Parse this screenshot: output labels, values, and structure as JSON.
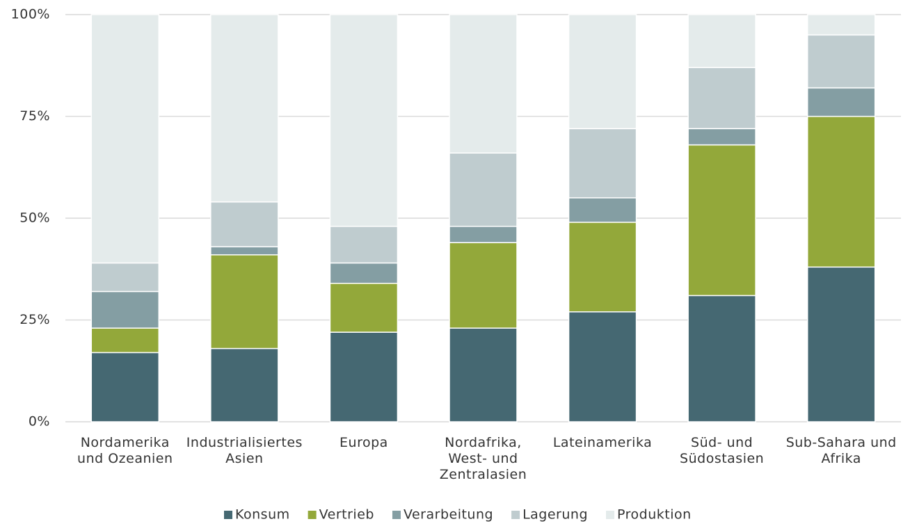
{
  "chart_data": {
    "type": "stacked_bar",
    "categories": [
      "Nordamerika\nund Ozeanien",
      "Industrialisiertes\nAsien",
      "Europa",
      "Nordafrika,\nWest- und\nZentralasien",
      "Lateinamerika",
      "Süd- und\nSüdostasien",
      "Sub-Sahara und\nAfrika"
    ],
    "series": [
      {
        "name": "Konsum",
        "color": "#456872",
        "values": [
          17,
          18,
          22,
          23,
          27,
          31,
          38
        ]
      },
      {
        "name": "Vertrieb",
        "color": "#93a83a",
        "values": [
          6,
          23,
          12,
          21,
          22,
          37,
          37
        ]
      },
      {
        "name": "Verarbeitung",
        "color": "#849ea3",
        "values": [
          9,
          2,
          5,
          4,
          6,
          4,
          7
        ]
      },
      {
        "name": "Lagerung",
        "color": "#bfcccf",
        "values": [
          7,
          11,
          9,
          18,
          17,
          15,
          13
        ]
      },
      {
        "name": "Produktion",
        "color": "#e4ebeb",
        "values": [
          61,
          46,
          52,
          34,
          28,
          13,
          5
        ]
      }
    ],
    "ylim": [
      0,
      100
    ],
    "yticks": [
      {
        "value": 0,
        "label": "0%"
      },
      {
        "value": 25,
        "label": "25%"
      },
      {
        "value": 50,
        "label": "50%"
      },
      {
        "value": 75,
        "label": "75%"
      },
      {
        "value": 100,
        "label": "100%"
      }
    ],
    "grid": true,
    "legend": "bottom"
  }
}
